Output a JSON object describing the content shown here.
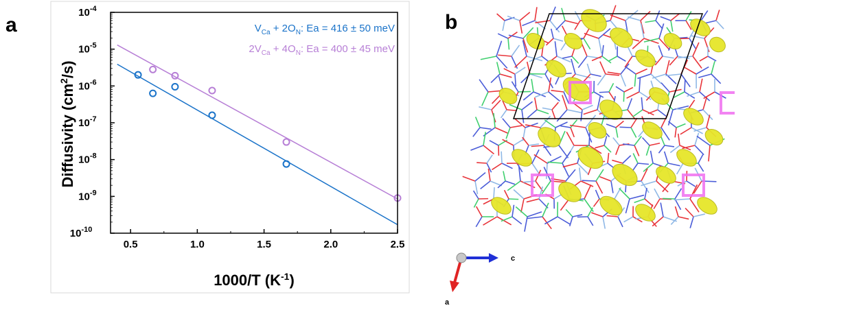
{
  "panels": {
    "a": "a",
    "b": "b"
  },
  "chart_data": {
    "type": "scatter",
    "xlabel_main": "1000/T (K",
    "xlabel_sup": "-1",
    "xlabel_end": ")",
    "ylabel_main": "Diffusivity (cm",
    "ylabel_sup": "2",
    "ylabel_end": "/s)",
    "xlim": [
      0.35,
      2.5
    ],
    "ylim_log10": [
      -10,
      -4
    ],
    "y_scale": "log",
    "x_ticks": [
      "0.5",
      "1.0",
      "1.5",
      "2.0",
      "2.5"
    ],
    "x_tick_values": [
      0.5,
      1.0,
      1.5,
      2.0,
      2.5
    ],
    "y_ticks": [
      {
        "base": "10",
        "exp": "-4",
        "log": -4
      },
      {
        "base": "10",
        "exp": "-5",
        "log": -5
      },
      {
        "base": "10",
        "exp": "-6",
        "log": -6
      },
      {
        "base": "10",
        "exp": "-7",
        "log": -7
      },
      {
        "base": "10",
        "exp": "-8",
        "log": -8
      },
      {
        "base": "10",
        "exp": "-9",
        "log": -9
      },
      {
        "base": "10",
        "exp": "-10",
        "log": -10
      }
    ],
    "legend_position": "top-right",
    "series": [
      {
        "color": "#1a73c9",
        "legend_parts": [
          {
            "t": "V",
            "s": ""
          },
          {
            "t": "Ca",
            "s": "sub"
          },
          {
            "t": " + 2O",
            "s": ""
          },
          {
            "t": "N",
            "s": "sub"
          },
          {
            "t": ": Ea = 416 ± 50 meV",
            "s": ""
          }
        ],
        "x": [
          0.556,
          0.667,
          0.833,
          1.111,
          1.667
        ],
        "y": [
          2e-06,
          6.3e-07,
          9.5e-07,
          1.6e-07,
          7.6e-09
        ],
        "fit_x": [
          0.4,
          2.5
        ],
        "fit_y": [
          3.9e-06,
          1.7e-10
        ]
      },
      {
        "color": "#b77fd6",
        "legend_parts": [
          {
            "t": "2V",
            "s": ""
          },
          {
            "t": "Ca",
            "s": "sub"
          },
          {
            "t": " + 4O",
            "s": ""
          },
          {
            "t": "N",
            "s": "sub"
          },
          {
            "t": ": Ea = 400 ± 45 meV",
            "s": ""
          }
        ],
        "x": [
          0.667,
          0.833,
          1.111,
          1.667,
          2.5
        ],
        "y": [
          2.8e-06,
          1.9e-06,
          7.5e-07,
          3e-08,
          9e-10
        ],
        "fit_x": [
          0.4,
          2.5
        ],
        "fit_y": [
          1.3e-05,
          8.5e-10
        ]
      }
    ]
  },
  "structure": {
    "axis_labels": {
      "c": "c",
      "a": "a"
    },
    "colors": {
      "isosurface": "#e6e62a",
      "bond_red": "#e8343a",
      "bond_blue": "#4a5cd8",
      "bond_green": "#3fcf6e",
      "bond_lightblue": "#8fb8e6",
      "vacancy": "#f06ef0",
      "c_axis": "#1f2fd6",
      "a_axis": "#e02424"
    }
  }
}
